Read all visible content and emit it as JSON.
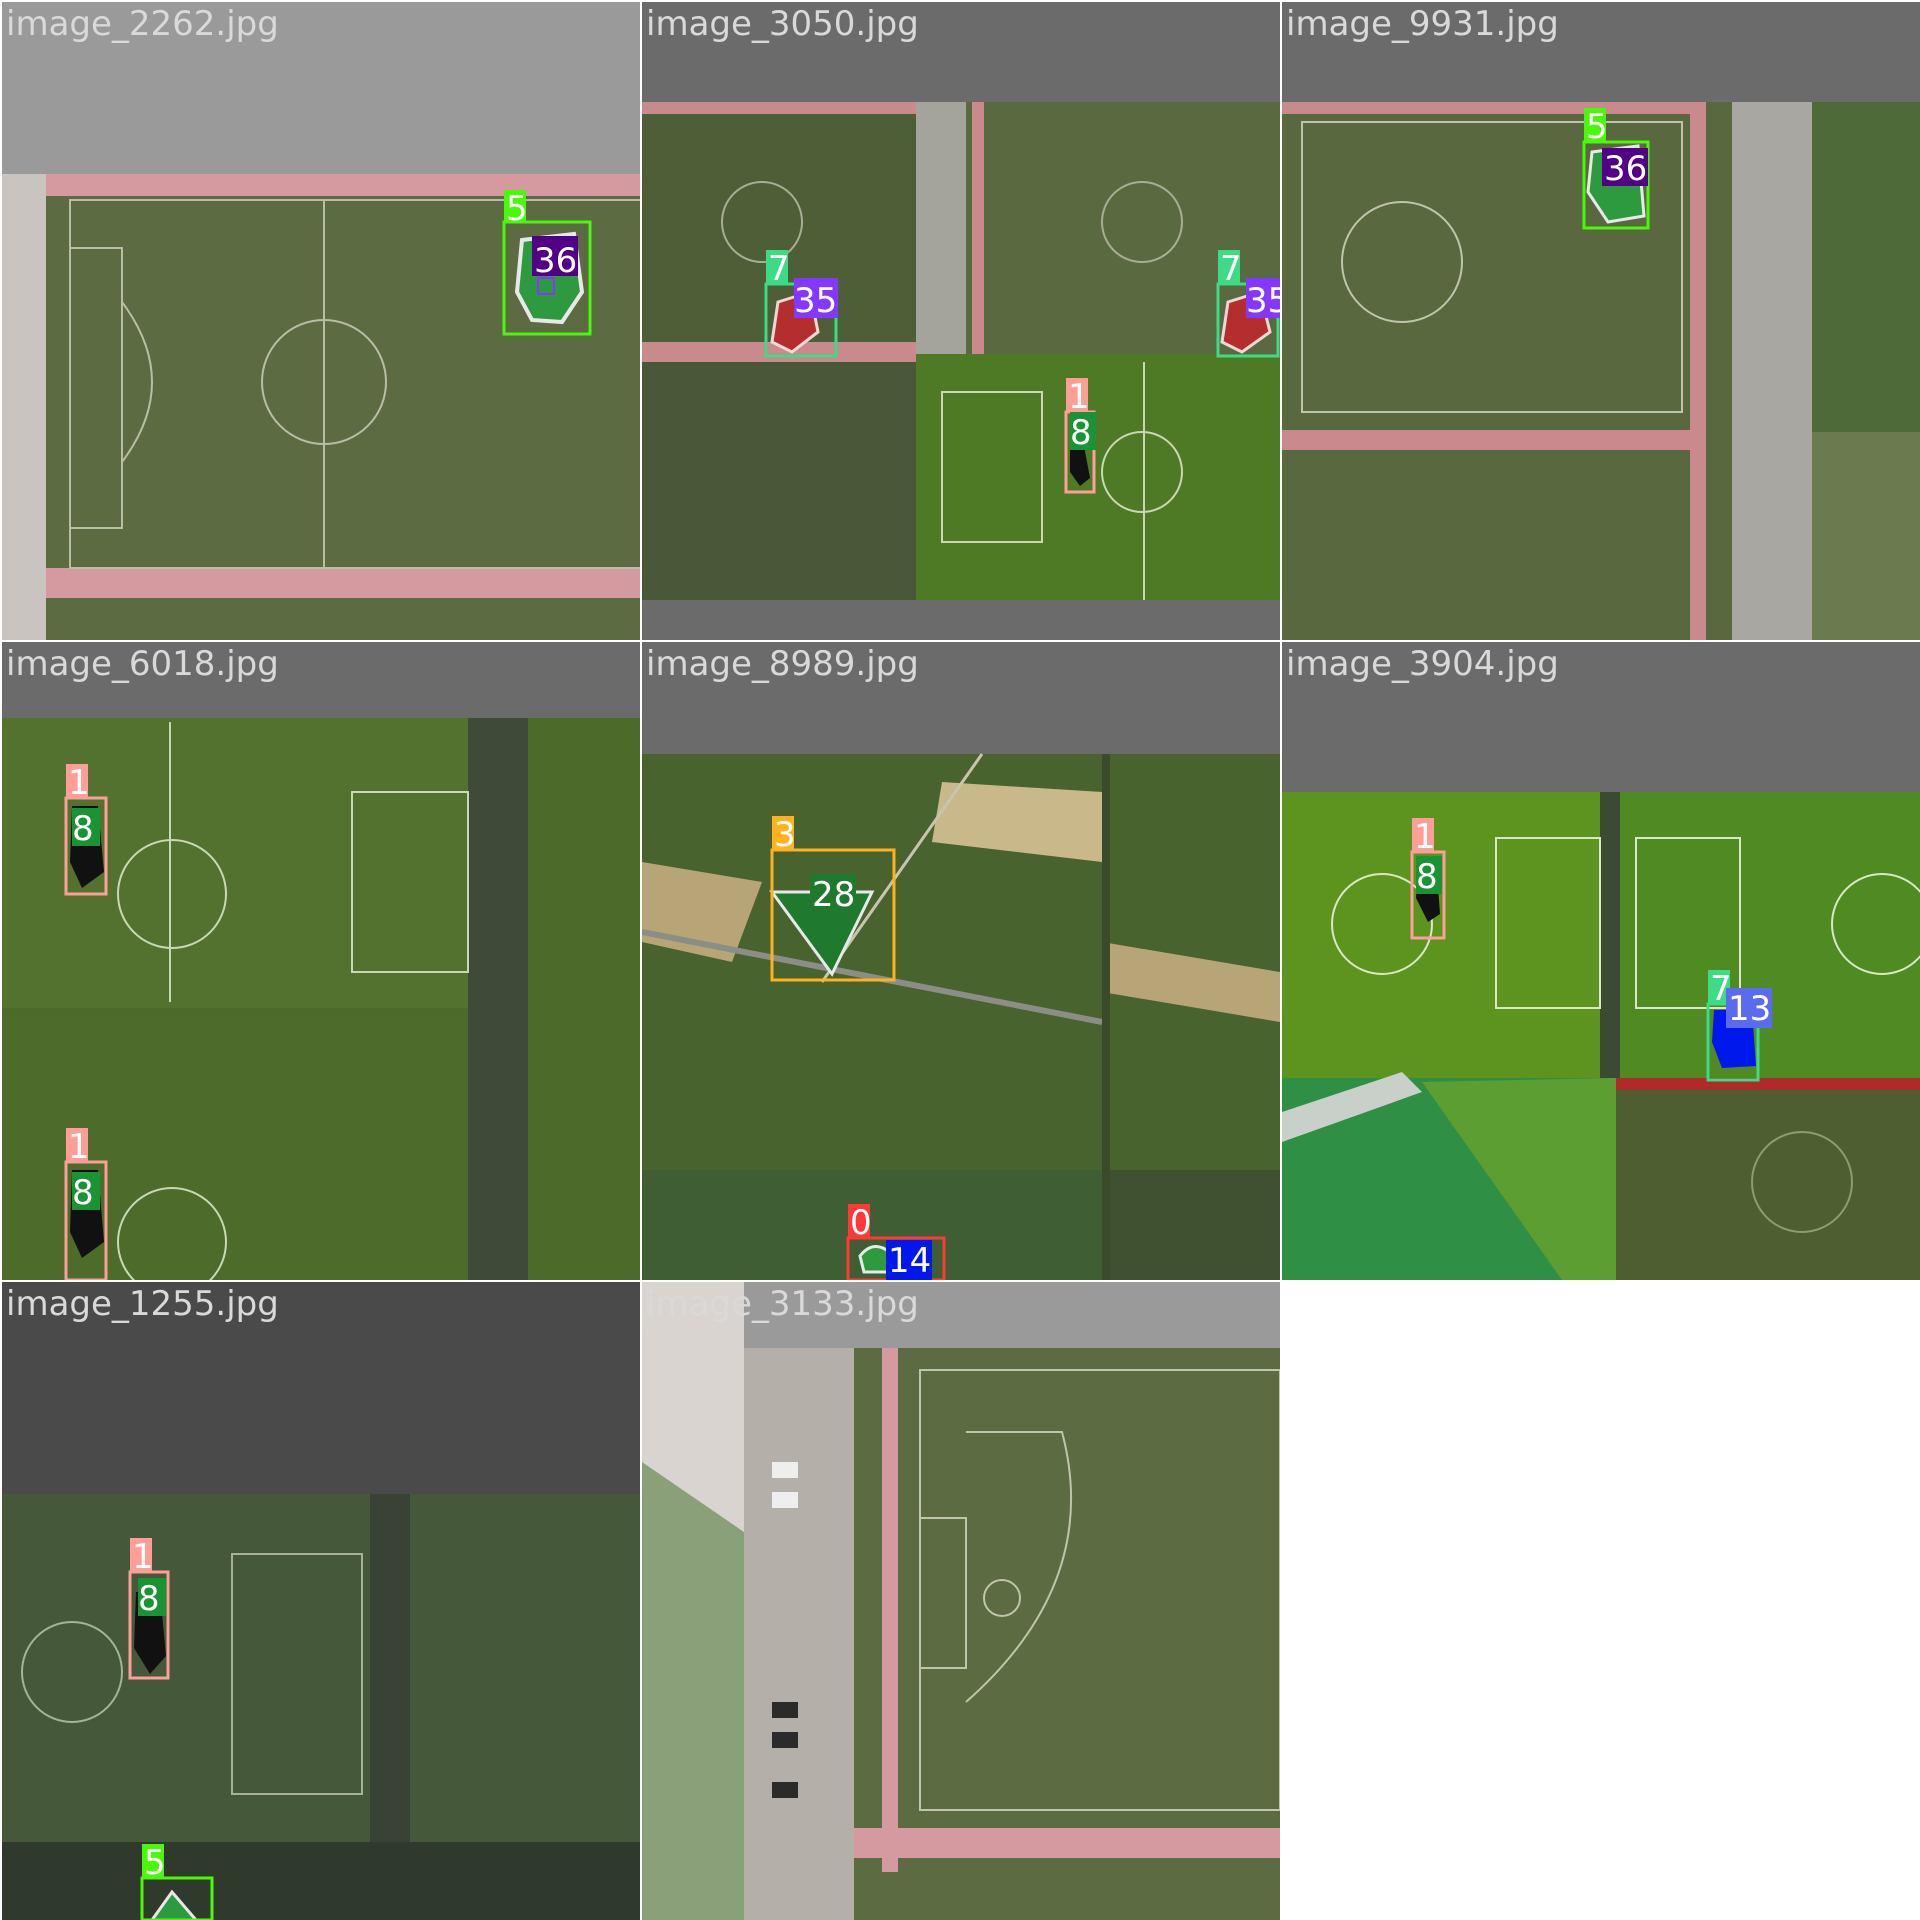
{
  "tiles": [
    {
      "filename": "image_2262.jpg",
      "labels": [
        "5",
        "36"
      ]
    },
    {
      "filename": "image_3050.jpg",
      "labels": [
        "7",
        "35",
        "7",
        "35",
        "1",
        "8"
      ]
    },
    {
      "filename": "image_9931.jpg",
      "labels": [
        "5",
        "36"
      ]
    },
    {
      "filename": "image_6018.jpg",
      "labels": [
        "1",
        "8",
        "1",
        "8"
      ]
    },
    {
      "filename": "image_8989.jpg",
      "labels": [
        "3",
        "28",
        "0",
        "14"
      ]
    },
    {
      "filename": "image_3904.jpg",
      "labels": [
        "1",
        "8",
        "7",
        "13"
      ]
    },
    {
      "filename": "image_1255.jpg",
      "labels": [
        "1",
        "8",
        "5"
      ]
    },
    {
      "filename": "image_3133.jpg",
      "labels": []
    }
  ],
  "colors": {
    "class_0": "#ff3838",
    "class_1": "#ff9d97",
    "class_3": "#ffb21d",
    "class_5": "#48f90a",
    "class_7": "#3ddb86",
    "class_8": "#1a9334",
    "class_13": "#0018ec",
    "class_14": "#0018ec",
    "class_28": "#1f7a2e",
    "class_35": "#8438ff",
    "class_36": "#520085"
  }
}
